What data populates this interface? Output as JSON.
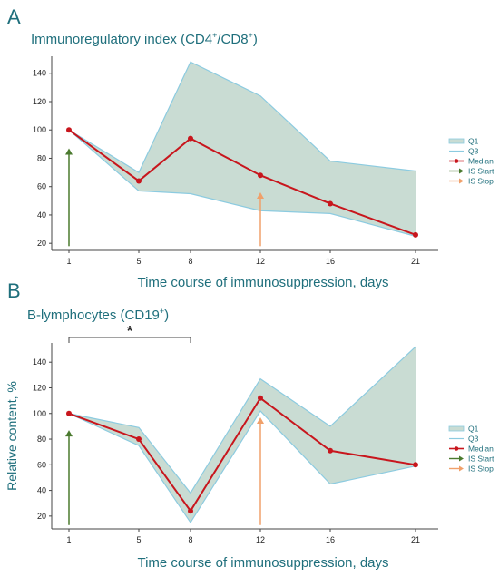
{
  "colors": {
    "band_fill": "#c9dcd3",
    "band_stroke": "#8ccbe0",
    "median": "#c8161d",
    "is_start": "#4a7a2e",
    "is_stop": "#f0a06a",
    "title": "#1f6f7c"
  },
  "chart_data": [
    {
      "type": "area",
      "panel": "A",
      "title_parts": [
        "Immunoregulatory index (CD4",
        "+",
        "/CD8",
        "+",
        ")"
      ],
      "xlabel": "Time course of immunosuppression, days",
      "ylabel": "",
      "x_ticks": [
        "1",
        "5",
        "8",
        "12",
        "16",
        "21"
      ],
      "y_ticks": [
        "20",
        "40",
        "60",
        "80",
        "100",
        "120",
        "140"
      ],
      "ylim": [
        15,
        152
      ],
      "grid": false,
      "legend": [
        "Q1",
        "Q3",
        "Median",
        "IS Start",
        "IS Stop"
      ],
      "legend_position": "right",
      "series": [
        {
          "name": "Q1",
          "values": [
            100,
            57,
            55,
            43,
            41,
            25
          ]
        },
        {
          "name": "Q3",
          "values": [
            100,
            70,
            148,
            124,
            78,
            71
          ]
        },
        {
          "name": "Median",
          "values": [
            100,
            64,
            94,
            68,
            48,
            26
          ]
        }
      ],
      "arrows": [
        {
          "name": "IS Start",
          "x": "1",
          "y_from": 18,
          "y_to": 87
        },
        {
          "name": "IS Stop",
          "x": "12",
          "y_from": 18,
          "y_to": 56
        }
      ]
    },
    {
      "type": "area",
      "panel": "B",
      "title_parts": [
        "B-lymphocytes (CD19",
        "+",
        ")"
      ],
      "xlabel": "Time course of immunosuppression, days",
      "ylabel": "Relative content, %",
      "x_ticks": [
        "1",
        "5",
        "8",
        "12",
        "16",
        "21"
      ],
      "y_ticks": [
        "20",
        "40",
        "60",
        "80",
        "100",
        "120",
        "140"
      ],
      "ylim": [
        10,
        155
      ],
      "grid": false,
      "legend": [
        "Q1",
        "Q3",
        "Median",
        "IS Start",
        "IS Stop"
      ],
      "legend_position": "right",
      "series": [
        {
          "name": "Q1",
          "values": [
            100,
            75,
            15,
            102,
            45,
            59
          ]
        },
        {
          "name": "Q3",
          "values": [
            100,
            89,
            38,
            127,
            90,
            152
          ]
        },
        {
          "name": "Median",
          "values": [
            100,
            80,
            24,
            112,
            71,
            60
          ]
        }
      ],
      "arrows": [
        {
          "name": "IS Start",
          "x": "1",
          "y_from": 13,
          "y_to": 87
        },
        {
          "name": "IS Stop",
          "x": "12",
          "y_from": 13,
          "y_to": 97
        }
      ],
      "significance": {
        "label": "*",
        "from": "1",
        "to": "8"
      }
    }
  ]
}
